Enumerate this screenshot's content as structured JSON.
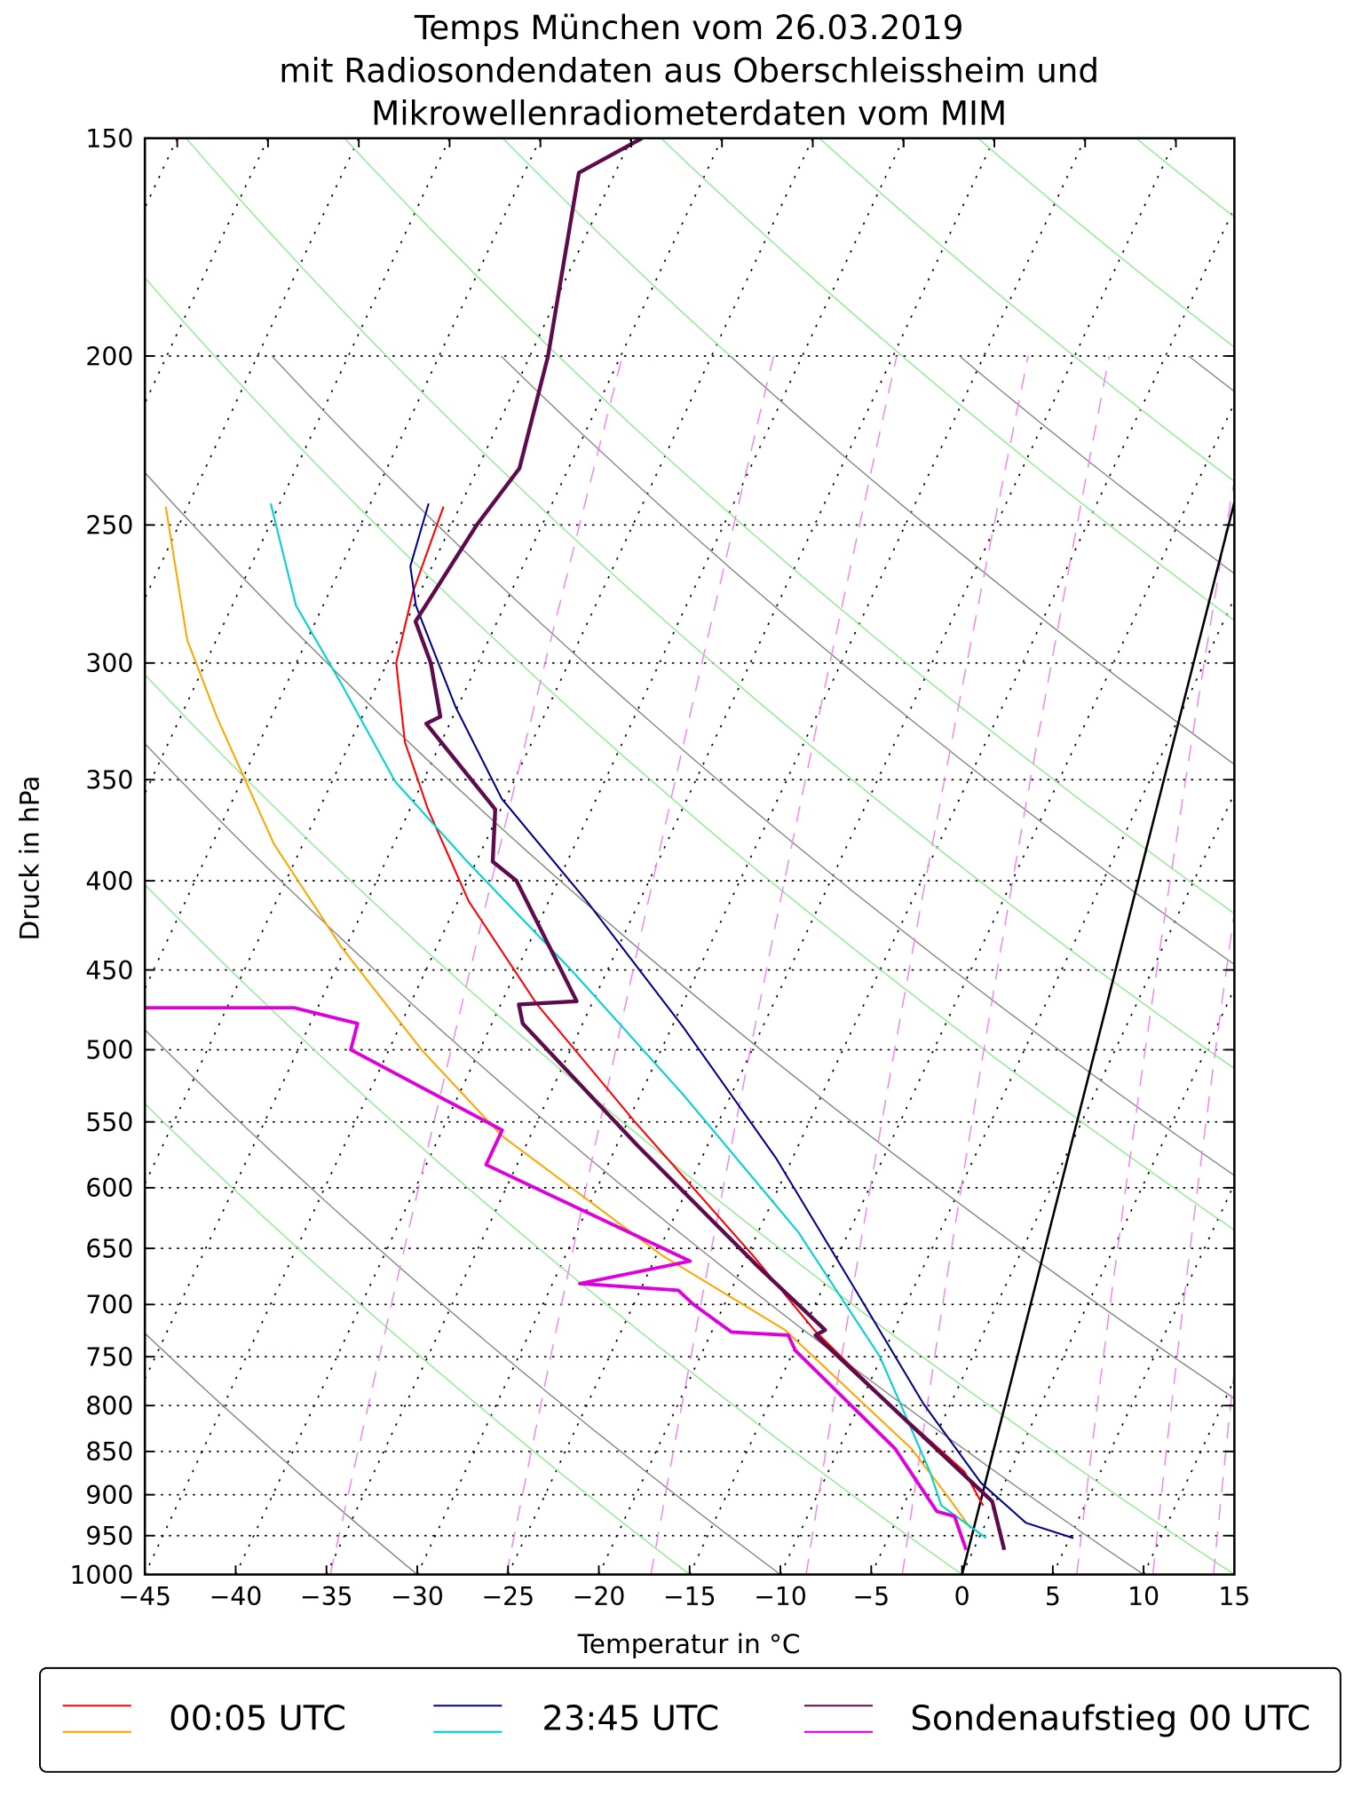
{
  "chart_data": {
    "type": "line",
    "subtype": "skew-T log-p diagram",
    "title": [
      "Temps München vom 26.03.2019",
      "mit Radiosondendaten aus Oberschleissheim und",
      "Mikrowellenradiometerdaten vom MIM"
    ],
    "xlabel": "Temperatur in °C",
    "ylabel": "Druck in hPa",
    "xlim": [
      -45,
      15
    ],
    "ylim": [
      1000,
      150
    ],
    "yscale": "log",
    "grid": true,
    "xticks": [
      -45,
      -40,
      -35,
      -30,
      -25,
      -20,
      -15,
      -10,
      -5,
      0,
      5,
      10,
      15
    ],
    "xtick_labels": [
      "−45",
      "−40",
      "−35",
      "−30",
      "−25",
      "−20",
      "−15",
      "−10",
      "−5",
      "0",
      "5",
      "10",
      "15"
    ],
    "yticks": [
      1000,
      950,
      900,
      850,
      800,
      750,
      700,
      650,
      600,
      550,
      500,
      450,
      400,
      350,
      300,
      250,
      200,
      150
    ],
    "ytick_labels": [
      "1000",
      "950",
      "900",
      "850",
      "800",
      "750",
      "700",
      "650",
      "600",
      "550",
      "500",
      "450",
      "400",
      "350",
      "300",
      "250",
      "200",
      "150"
    ],
    "legend": {
      "placement": "bottom-outside",
      "entries": [
        {
          "label": "00:05 UTC",
          "colors": [
            "#ff0000",
            "#ffa500"
          ]
        },
        {
          "label": "23:45 UTC",
          "colors": [
            "#00008b",
            "#00d0d0"
          ]
        },
        {
          "label": "Sondenaufstieg 00 UTC",
          "colors": [
            "#5e0b4c",
            "#dd00dd"
          ]
        }
      ]
    },
    "series": [
      {
        "name": "00:05 UTC Temperatur",
        "color": "#ff0000",
        "width": 1.6,
        "points": [
          [
            244,
            -55.9
          ],
          [
            273,
            -55.4
          ],
          [
            300,
            -54.5
          ],
          [
            333,
            -52.0
          ],
          [
            364,
            -49.0
          ],
          [
            411,
            -44.4
          ],
          [
            471,
            -38.0
          ],
          [
            550,
            -29.6
          ],
          [
            656,
            -19.7
          ],
          [
            724,
            -14.4
          ],
          [
            798,
            -8.4
          ],
          [
            873,
            -2.5
          ],
          [
            913,
            -0.6
          ]
        ]
      },
      {
        "name": "00:05 UTC Taupunkt",
        "color": "#ffa500",
        "width": 1.6,
        "points": [
          [
            244,
            -71.2
          ],
          [
            291,
            -66.6
          ],
          [
            323,
            -62.9
          ],
          [
            381,
            -56.6
          ],
          [
            437,
            -50.2
          ],
          [
            500,
            -43.2
          ],
          [
            560,
            -36.6
          ],
          [
            656,
            -24.7
          ],
          [
            724,
            -16.0
          ],
          [
            847,
            -6.0
          ],
          [
            900,
            -2.9
          ],
          [
            941,
            -0.7
          ]
        ]
      },
      {
        "name": "23:45 UTC Temperatur",
        "color": "#00008b",
        "width": 1.6,
        "points": [
          [
            243,
            -56.8
          ],
          [
            264,
            -56.2
          ],
          [
            278,
            -54.9
          ],
          [
            318,
            -50.1
          ],
          [
            359,
            -45.2
          ],
          [
            411,
            -37.9
          ],
          [
            485,
            -29.4
          ],
          [
            577,
            -20.9
          ],
          [
            686,
            -13.2
          ],
          [
            798,
            -6.5
          ],
          [
            886,
            -1.3
          ],
          [
            934,
            2.2
          ],
          [
            953,
            5.2
          ]
        ]
      },
      {
        "name": "23:45 UTC Taupunkt",
        "color": "#00d0d0",
        "width": 1.6,
        "points": [
          [
            243,
            -65.5
          ],
          [
            278,
            -61.5
          ],
          [
            309,
            -56.9
          ],
          [
            351,
            -51.5
          ],
          [
            390,
            -45.5
          ],
          [
            450,
            -37.0
          ],
          [
            531,
            -27.6
          ],
          [
            636,
            -17.8
          ],
          [
            750,
            -10.1
          ],
          [
            873,
            -4.4
          ],
          [
            913,
            -2.9
          ],
          [
            953,
            0.4
          ]
        ]
      },
      {
        "name": "Sondenaufstieg 00 UTC Temperatur",
        "color": "#5e0b4c",
        "width": 3.4,
        "points": [
          [
            150,
            -54.4
          ],
          [
            157,
            -57.0
          ],
          [
            200,
            -54.0
          ],
          [
            232,
            -52.7
          ],
          [
            250,
            -53.6
          ],
          [
            284,
            -54.5
          ],
          [
            300,
            -52.6
          ],
          [
            322,
            -50.7
          ],
          [
            325,
            -51.3
          ],
          [
            364,
            -45.3
          ],
          [
            390,
            -44.1
          ],
          [
            400,
            -42.3
          ],
          [
            469,
            -35.9
          ],
          [
            471,
            -39.0
          ],
          [
            483,
            -38.3
          ],
          [
            568,
            -28.8
          ],
          [
            666,
            -19.1
          ],
          [
            724,
            -13.8
          ],
          [
            729,
            -14.2
          ],
          [
            908,
            -0.2
          ],
          [
            968,
            1.7
          ]
        ]
      },
      {
        "name": "Sondenaufstieg 00 UTC Taupunkt",
        "color": "#dd00dd",
        "width": 3.0,
        "points": [
          [
            473,
            -59.5
          ],
          [
            473,
            -51.3
          ],
          [
            483,
            -47.4
          ],
          [
            500,
            -47.1
          ],
          [
            556,
            -36.7
          ],
          [
            582,
            -36.7
          ],
          [
            661,
            -23.0
          ],
          [
            681,
            -28.5
          ],
          [
            687,
            -22.9
          ],
          [
            700,
            -21.7
          ],
          [
            726,
            -18.9
          ],
          [
            729,
            -15.7
          ],
          [
            744,
            -14.9
          ],
          [
            847,
            -6.9
          ],
          [
            920,
            -3.0
          ],
          [
            926,
            -1.9
          ],
          [
            968,
            -0.4
          ]
        ]
      }
    ]
  }
}
